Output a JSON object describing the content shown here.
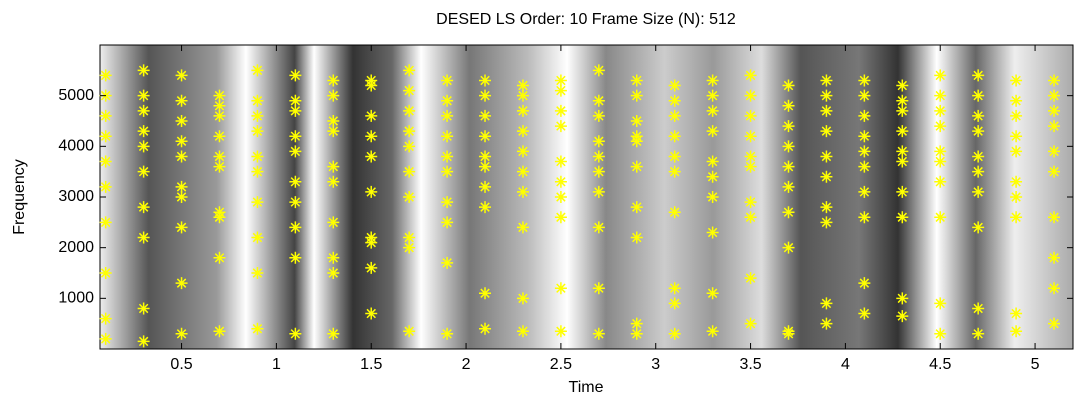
{
  "chart_data": {
    "type": "scatter",
    "title": "DESED LS Order: 10 Frame Size (N): 512",
    "x_label": "Time",
    "y_label": "Frequency",
    "color": "#ffff00",
    "xlim": [
      0.07,
      5.2
    ],
    "ylim": [
      0,
      6000
    ],
    "xticks": [
      0.5,
      1,
      1.5,
      2,
      2.5,
      3,
      3.5,
      4,
      4.5,
      5
    ],
    "yticks": [
      1000,
      2000,
      3000,
      4000,
      5000
    ],
    "x": [
      0.1,
      0.3,
      0.5,
      0.7,
      0.9,
      1.1,
      1.3,
      1.5,
      1.7,
      1.9,
      2.1,
      2.3,
      2.5,
      2.7,
      2.9,
      3.1,
      3.3,
      3.5,
      3.7,
      3.9,
      4.1,
      4.3,
      4.5,
      4.7,
      4.9,
      5.1
    ],
    "series": [
      {
        "values": [
          200,
          150,
          300,
          350,
          400,
          300,
          300,
          700,
          350,
          300,
          400,
          350,
          350,
          300,
          300,
          300,
          350,
          500,
          350,
          500,
          700,
          650,
          300,
          300,
          350,
          500
        ]
      },
      {
        "values": [
          600,
          800,
          1300,
          1800,
          1500,
          1800,
          1500,
          1600,
          2000,
          1700,
          1100,
          1000,
          1200,
          1200,
          500,
          900,
          1100,
          1400,
          300,
          900,
          1300,
          1000,
          900,
          800,
          700,
          1200
        ]
      },
      {
        "values": [
          1500,
          2200,
          2400,
          2600,
          2200,
          2400,
          1800,
          2100,
          2200,
          2500,
          2800,
          2400,
          2600,
          2400,
          2200,
          1200,
          2300,
          2600,
          2000,
          2500,
          2600,
          2600,
          2600,
          2400,
          2600,
          1800
        ]
      },
      {
        "values": [
          2500,
          2800,
          3000,
          2700,
          2900,
          2900,
          2500,
          2200,
          3000,
          2900,
          3200,
          3100,
          3000,
          3100,
          2800,
          2700,
          3000,
          2900,
          2700,
          2800,
          3100,
          3100,
          3300,
          3100,
          3000,
          2600
        ]
      },
      {
        "values": [
          3200,
          3500,
          3200,
          3600,
          3500,
          3300,
          3300,
          3100,
          3500,
          3500,
          3600,
          3500,
          3300,
          3500,
          3600,
          3500,
          3400,
          3600,
          3200,
          3400,
          3600,
          3700,
          3700,
          3500,
          3300,
          3500
        ]
      },
      {
        "values": [
          3700,
          4000,
          3800,
          3800,
          3800,
          3900,
          3600,
          3800,
          4000,
          3800,
          3800,
          3900,
          3700,
          3800,
          4100,
          3800,
          3700,
          3800,
          3600,
          3800,
          3900,
          3900,
          3900,
          3800,
          3900,
          3900
        ]
      },
      {
        "values": [
          4200,
          4300,
          4100,
          4200,
          4300,
          4200,
          4300,
          4200,
          4300,
          4200,
          4200,
          4300,
          4400,
          4100,
          4200,
          4200,
          4300,
          4200,
          4000,
          4300,
          4200,
          4300,
          4400,
          4300,
          4200,
          4400
        ]
      },
      {
        "values": [
          4600,
          4700,
          4500,
          4600,
          4600,
          4700,
          4500,
          4600,
          4700,
          4600,
          4600,
          4700,
          4700,
          4600,
          4500,
          4600,
          4700,
          4600,
          4400,
          4700,
          4600,
          4700,
          4700,
          4600,
          4600,
          4700
        ]
      },
      {
        "values": [
          5000,
          5000,
          4900,
          5000,
          4900,
          4900,
          5000,
          5200,
          5100,
          4900,
          5000,
          5000,
          5100,
          4900,
          5000,
          4900,
          5000,
          5000,
          4800,
          5000,
          5000,
          4900,
          5000,
          5000,
          4900,
          5000
        ]
      },
      {
        "values": [
          5400,
          5500,
          5400,
          4800,
          5500,
          5400,
          5300,
          5300,
          5500,
          5300,
          5300,
          5200,
          5300,
          5500,
          5300,
          5200,
          5300,
          5400,
          5200,
          5300,
          5300,
          5200,
          5400,
          5400,
          5300,
          5300
        ]
      }
    ]
  }
}
